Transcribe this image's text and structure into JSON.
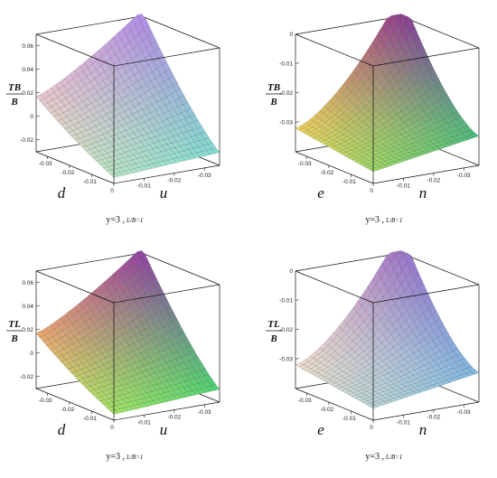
{
  "chart_data": [
    {
      "type": "surface3d",
      "zlabel_num": "TB",
      "zlabel_den": "B",
      "xlabel": "d",
      "ylabel": "u",
      "zticks": [
        "0.06",
        "0.04",
        "0.02",
        "0",
        "-0.02"
      ],
      "xticks": [
        "-0.03",
        "-0.02",
        "-0.01",
        "0"
      ],
      "yticks": [
        "-0.01",
        "-0.02",
        "-0.03"
      ],
      "caption_main": "y=3 ,",
      "caption_sub": "L/B=1",
      "zlim": [
        -0.03,
        0.07
      ],
      "colors": {
        "top": "#7f7fe6",
        "left": "#e69ae0",
        "right": "#7fe6d0",
        "bottom": "#f0eeb8"
      }
    },
    {
      "type": "surface3d",
      "zlabel_num": "TB",
      "zlabel_den": "B",
      "xlabel": "e",
      "ylabel": "n",
      "zticks": [
        "0",
        "-0.01",
        "-0.02",
        "-0.03"
      ],
      "xticks": [
        "-0.03",
        "-0.02",
        "-0.01",
        "0"
      ],
      "yticks": [
        "-0.01",
        "-0.02",
        "-0.03"
      ],
      "caption_main": "y=3 ,",
      "caption_sub": "L/B=1",
      "zlim": [
        -0.04,
        0.0
      ],
      "colors": {
        "top": "#3a3ab4",
        "left": "#e64f6a",
        "right": "#4fe66a",
        "bottom": "#f2f25a"
      }
    },
    {
      "type": "surface3d",
      "zlabel_num": "TL",
      "zlabel_den": "B",
      "xlabel": "d",
      "ylabel": "u",
      "zticks": [
        "0.06",
        "0.04",
        "0.02",
        "0",
        "-0.02"
      ],
      "xticks": [
        "-0.03",
        "-0.02",
        "-0.01",
        "0"
      ],
      "yticks": [
        "-0.01",
        "-0.02",
        "-0.03"
      ],
      "caption_main": "y=3 ,",
      "caption_sub": "L/B=1",
      "zlim": [
        -0.03,
        0.07
      ],
      "colors": {
        "top": "#3a3ab4",
        "left": "#e64f8a",
        "right": "#4fe66a",
        "bottom": "#f2f25a"
      }
    },
    {
      "type": "surface3d",
      "zlabel_num": "TL",
      "zlabel_den": "B",
      "xlabel": "e",
      "ylabel": "n",
      "zticks": [
        "0",
        "-0.01",
        "-0.02",
        "-0.03"
      ],
      "xticks": [
        "-0.03",
        "-0.02",
        "-0.01",
        "0"
      ],
      "yticks": [
        "-0.01",
        "-0.02",
        "-0.03"
      ],
      "caption_main": "y=3 ,",
      "caption_sub": "L/B=1",
      "zlim": [
        -0.04,
        0.0
      ],
      "colors": {
        "top": "#5a5ad6",
        "left": "#e69ab8",
        "right": "#8ad6e6",
        "bottom": "#f2eed0"
      }
    }
  ]
}
